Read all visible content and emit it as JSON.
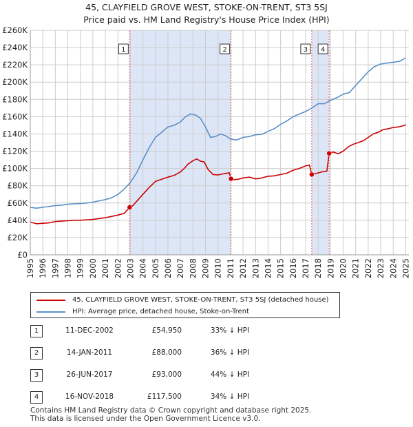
{
  "chart_data": {
    "type": "line",
    "title": "45, CLAYFIELD GROVE WEST, STOKE-ON-TRENT, ST3 5SJ",
    "subtitle": "Price paid vs. HM Land Registry's House Price Index (HPI)",
    "xlabel": "",
    "ylabel": "",
    "xlim": [
      1995.0,
      2025.25
    ],
    "ylim": [
      0,
      260000
    ],
    "x_ticks": [
      "1995",
      "1996",
      "1997",
      "1998",
      "1999",
      "2000",
      "2001",
      "2002",
      "2003",
      "2004",
      "2005",
      "2006",
      "2007",
      "2008",
      "2009",
      "2010",
      "2011",
      "2012",
      "2013",
      "2014",
      "2015",
      "2016",
      "2017",
      "2018",
      "2019",
      "2020",
      "2021",
      "2022",
      "2023",
      "2024",
      "2025"
    ],
    "y_ticks": [
      "£0",
      "£20K",
      "£40K",
      "£60K",
      "£80K",
      "£100K",
      "£120K",
      "£140K",
      "£160K",
      "£180K",
      "£200K",
      "£220K",
      "£240K",
      "£260K"
    ],
    "colors": {
      "property": "#cc0000",
      "hpi": "#5b8fc7",
      "shade": "#dde6f7",
      "vline": "#e05555",
      "grid": "#cccccc"
    },
    "shaded_spans": [
      [
        2002.94,
        2011.04
      ],
      [
        2017.49,
        2018.88
      ]
    ],
    "series": [
      {
        "name": "45, CLAYFIELD GROVE WEST, STOKE-ON-TRENT, ST3 5SJ (detached house)",
        "color": "#cc0000",
        "x": [
          1995.0,
          1995.5,
          1996.0,
          1996.5,
          1997.0,
          1997.5,
          1998.0,
          1998.5,
          1999.0,
          1999.5,
          2000.0,
          2000.5,
          2001.0,
          2001.5,
          2002.0,
          2002.5,
          2002.94,
          2003.2,
          2003.5,
          2004.0,
          2004.5,
          2005.0,
          2005.5,
          2006.0,
          2006.5,
          2007.0,
          2007.3,
          2007.6,
          2008.0,
          2008.3,
          2008.6,
          2008.9,
          2009.2,
          2009.6,
          2010.0,
          2010.5,
          2010.9,
          2011.04,
          2011.3,
          2011.6,
          2012.0,
          2012.5,
          2013.0,
          2013.5,
          2014.0,
          2014.5,
          2015.0,
          2015.5,
          2016.0,
          2016.5,
          2017.0,
          2017.3,
          2017.49,
          2017.6,
          2017.9,
          2018.3,
          2018.7,
          2018.88,
          2019.2,
          2019.6,
          2020.0,
          2020.4,
          2020.8,
          2021.2,
          2021.6,
          2022.0,
          2022.4,
          2022.8,
          2023.2,
          2023.6,
          2024.0,
          2024.4,
          2024.8,
          2025.0
        ],
        "values": [
          38000,
          36000,
          36500,
          37000,
          38500,
          39000,
          39500,
          40000,
          40000,
          40500,
          41000,
          42000,
          43000,
          44500,
          46000,
          48000,
          54950,
          57000,
          62000,
          70000,
          78000,
          85000,
          87500,
          90000,
          92000,
          96000,
          100000,
          105000,
          109000,
          111000,
          108500,
          107500,
          99000,
          93000,
          92500,
          94000,
          95000,
          88000,
          87000,
          87500,
          89000,
          90000,
          88000,
          89000,
          91000,
          91500,
          93000,
          94500,
          98000,
          100000,
          103000,
          104000,
          93000,
          93500,
          94500,
          96000,
          97000,
          117500,
          119000,
          117000,
          120000,
          125000,
          128000,
          130000,
          132000,
          136000,
          140000,
          142000,
          145000,
          146000,
          147500,
          148000,
          149500,
          150500
        ]
      },
      {
        "name": "HPI: Average price, detached house, Stoke-on-Trent",
        "color": "#5b8fc7",
        "x": [
          1995.0,
          1995.5,
          1996.0,
          1996.5,
          1997.0,
          1997.5,
          1998.0,
          1998.5,
          1999.0,
          1999.5,
          2000.0,
          2000.5,
          2001.0,
          2001.5,
          2002.0,
          2002.5,
          2003.0,
          2003.5,
          2004.0,
          2004.5,
          2005.0,
          2005.5,
          2006.0,
          2006.5,
          2007.0,
          2007.4,
          2007.8,
          2008.2,
          2008.6,
          2009.0,
          2009.4,
          2009.8,
          2010.2,
          2010.6,
          2011.0,
          2011.5,
          2012.0,
          2012.5,
          2013.0,
          2013.5,
          2014.0,
          2014.5,
          2015.0,
          2015.5,
          2016.0,
          2016.5,
          2017.0,
          2017.5,
          2018.0,
          2018.5,
          2019.0,
          2019.5,
          2020.0,
          2020.5,
          2021.0,
          2021.5,
          2022.0,
          2022.5,
          2023.0,
          2023.5,
          2024.0,
          2024.5,
          2025.0
        ],
        "values": [
          55000,
          54000,
          55000,
          56000,
          57000,
          57500,
          58500,
          59000,
          59500,
          60000,
          61000,
          62500,
          64000,
          66000,
          70000,
          76000,
          84000,
          95000,
          110000,
          124000,
          136000,
          142000,
          148000,
          150000,
          154000,
          160000,
          163000,
          162000,
          158000,
          148000,
          136000,
          137000,
          140000,
          138000,
          134000,
          133000,
          136000,
          137000,
          139000,
          139500,
          143000,
          146000,
          151000,
          155000,
          160000,
          163000,
          166000,
          170000,
          175000,
          175000,
          179000,
          182000,
          186000,
          188000,
          196000,
          204000,
          212000,
          218000,
          221000,
          222000,
          223000,
          224000,
          228000
        ]
      }
    ],
    "sales": [
      {
        "label": "1",
        "x": 2002.94,
        "value": 54950
      },
      {
        "label": "2",
        "x": 2011.04,
        "value": 88000
      },
      {
        "label": "3",
        "x": 2017.49,
        "value": 93000
      },
      {
        "label": "4",
        "x": 2018.88,
        "value": 117500
      }
    ]
  },
  "legend": {
    "property_label": "45, CLAYFIELD GROVE WEST, STOKE-ON-TRENT, ST3 5SJ (detached house)",
    "hpi_label": "HPI: Average price, detached house, Stoke-on-Trent"
  },
  "sales_table": [
    {
      "num": "1",
      "date": "11-DEC-2002",
      "price": "£54,950",
      "hpi": "33% ↓ HPI"
    },
    {
      "num": "2",
      "date": "14-JAN-2011",
      "price": "£88,000",
      "hpi": "36% ↓ HPI"
    },
    {
      "num": "3",
      "date": "26-JUN-2017",
      "price": "£93,000",
      "hpi": "44% ↓ HPI"
    },
    {
      "num": "4",
      "date": "16-NOV-2018",
      "price": "£117,500",
      "hpi": "34% ↓ HPI"
    }
  ],
  "footer": {
    "line1": "Contains HM Land Registry data © Crown copyright and database right 2025.",
    "line2": "This data is licensed under the Open Government Licence v3.0."
  }
}
